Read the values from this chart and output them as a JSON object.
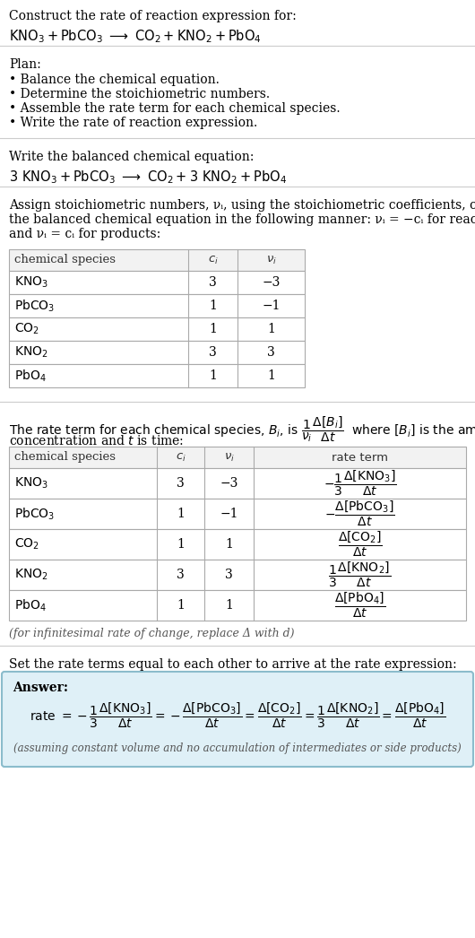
{
  "title_line1": "Construct the rate of reaction expression for:",
  "plan_header": "Plan:",
  "plan_bullets": [
    "• Balance the chemical equation.",
    "• Determine the stoichiometric numbers.",
    "• Assemble the rate term for each chemical species.",
    "• Write the rate of reaction expression."
  ],
  "balanced_header": "Write the balanced chemical equation:",
  "stoich_lines": [
    "Assign stoichiometric numbers, νᵢ, using the stoichiometric coefficients, cᵢ, from",
    "the balanced chemical equation in the following manner: νᵢ = −cᵢ for reactants",
    "and νᵢ = cᵢ for products:"
  ],
  "infinitesimal_note": "(for infinitesimal rate of change, replace Δ with d)",
  "set_equal_header": "Set the rate terms equal to each other to arrive at the rate expression:",
  "answer_label": "Answer:",
  "footer_note": "(assuming constant volume and no accumulation of intermediates or side products)",
  "answer_box_color": "#dff0f7",
  "answer_border_color": "#8bbccc",
  "bg_color": "#ffffff",
  "text_color": "#000000",
  "sep_color": "#cccccc",
  "table_border_color": "#aaaaaa",
  "table_header_bg": "#f2f2f2",
  "fs_body": 10.0,
  "fs_small": 9.0,
  "fs_eq": 10.5
}
